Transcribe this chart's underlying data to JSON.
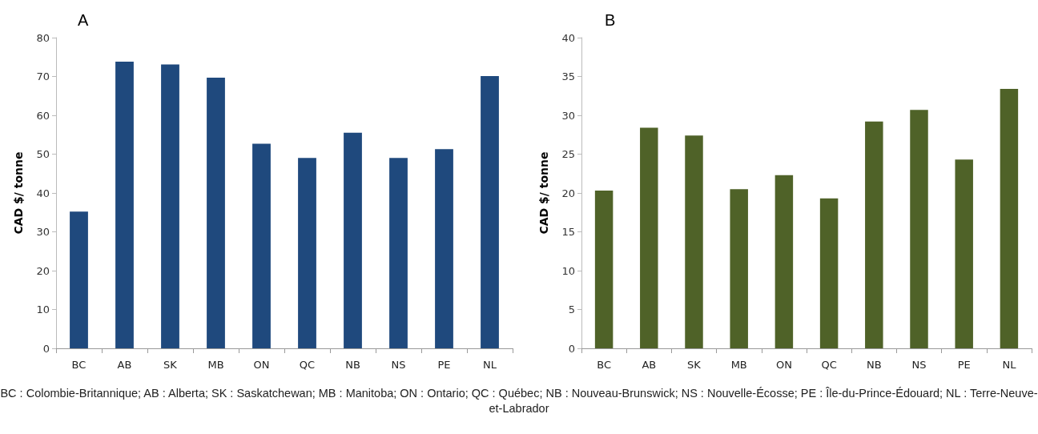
{
  "chart_data": [
    {
      "type": "bar",
      "title": "A",
      "ylabel": "CAD $/ tonne",
      "categories": [
        "BC",
        "AB",
        "SK",
        "MB",
        "ON",
        "QC",
        "NB",
        "NS",
        "PE",
        "NL"
      ],
      "values": [
        35.2,
        73.8,
        73.1,
        69.7,
        52.7,
        49.0,
        55.5,
        49.0,
        51.3,
        70.1
      ],
      "color": "#1f497d",
      "ylim": [
        0,
        80
      ],
      "yticks": [
        0,
        10,
        20,
        30,
        40,
        50,
        60,
        70,
        80
      ],
      "grid": false,
      "annotations": [
        "BC : Colombie-Britannique; AB : Alberta; SK : Saskatchewan; MB : Manitoba; ON : Ontario; QC : Québec; NB : Nouveau-Brunswick; NS : Nouvelle-Écosse; PE : Île-du-Prince-Édouard; NL : Terre-Neuve-et-Labrador"
      ]
    },
    {
      "type": "bar",
      "title": "B",
      "ylabel": "CAD $/ tonne",
      "categories": [
        "BC",
        "AB",
        "SK",
        "MB",
        "ON",
        "QC",
        "NB",
        "NS",
        "PE",
        "NL"
      ],
      "values": [
        20.3,
        28.4,
        27.4,
        20.5,
        22.3,
        19.3,
        29.2,
        30.7,
        24.3,
        33.4
      ],
      "color": "#4f6228",
      "ylim": [
        0,
        40
      ],
      "yticks": [
        0,
        5,
        10,
        15,
        20,
        25,
        30,
        35,
        40
      ],
      "grid": false
    }
  ]
}
